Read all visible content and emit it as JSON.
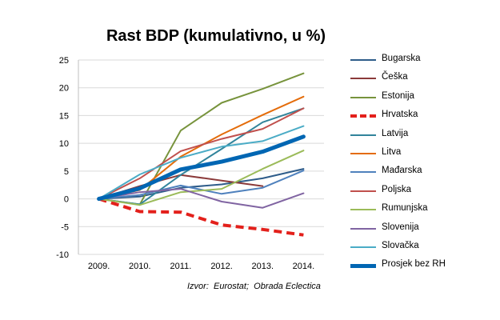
{
  "chart_data": {
    "type": "line",
    "title": "Rast BDP (kumulativno, u %)",
    "xlabel": "",
    "ylabel": "",
    "x": [
      "2009.",
      "2010.",
      "2011.",
      "2012.",
      "2013.",
      "2014."
    ],
    "ylim": [
      -10,
      25
    ],
    "yticks": [
      -10,
      -5,
      0,
      5,
      10,
      15,
      20,
      25
    ],
    "grid": true,
    "legend_position": "right",
    "source": "Izvor:  Eurostat;  Obrada Eclectica",
    "series": [
      {
        "name": "Bugarska",
        "color": "#2e5c8a",
        "style": "solid",
        "width": 2,
        "values": [
          0,
          0.4,
          2.0,
          2.6,
          3.7,
          5.4
        ]
      },
      {
        "name": "Češka",
        "color": "#8b3a3a",
        "style": "solid",
        "width": 2,
        "values": [
          0,
          2.3,
          4.3,
          3.3,
          2.3,
          null
        ]
      },
      {
        "name": "Estonija",
        "color": "#77933c",
        "style": "solid",
        "width": 2,
        "values": [
          0,
          -1.0,
          12.3,
          17.3,
          19.8,
          22.6
        ]
      },
      {
        "name": "Hrvatska",
        "color": "#e3201b",
        "style": "dashed",
        "width": 4,
        "values": [
          0,
          -2.3,
          -2.4,
          -4.7,
          -5.5,
          -6.5
        ]
      },
      {
        "name": "Latvija",
        "color": "#31849b",
        "style": "solid",
        "width": 2,
        "values": [
          0,
          -1.0,
          4.3,
          9.0,
          13.8,
          16.3
        ]
      },
      {
        "name": "Litva",
        "color": "#e46c0a",
        "style": "solid",
        "width": 2,
        "values": [
          0,
          1.6,
          7.6,
          11.6,
          15.1,
          18.4
        ]
      },
      {
        "name": "Mađarska",
        "color": "#4f81bd",
        "style": "solid",
        "width": 2,
        "values": [
          0,
          0.7,
          2.4,
          0.9,
          2.0,
          5.1
        ]
      },
      {
        "name": "Poljska",
        "color": "#c0504d",
        "style": "solid",
        "width": 2,
        "values": [
          0,
          3.7,
          8.6,
          10.8,
          12.6,
          16.3
        ]
      },
      {
        "name": "Rumunjska",
        "color": "#9bbb59",
        "style": "solid",
        "width": 2,
        "values": [
          0,
          -1.1,
          1.2,
          1.8,
          5.4,
          8.7
        ]
      },
      {
        "name": "Slovenija",
        "color": "#8064a2",
        "style": "solid",
        "width": 2,
        "values": [
          0,
          1.2,
          1.8,
          -0.5,
          -1.6,
          1.0
        ]
      },
      {
        "name": "Slovačka",
        "color": "#4bacc6",
        "style": "solid",
        "width": 2,
        "values": [
          0,
          4.4,
          7.4,
          9.4,
          10.4,
          13.1
        ]
      },
      {
        "name": "Prosjek bez RH",
        "color": "#0066b3",
        "style": "solid",
        "width": 5,
        "values": [
          0,
          1.9,
          5.3,
          6.7,
          8.5,
          11.2
        ]
      }
    ]
  }
}
